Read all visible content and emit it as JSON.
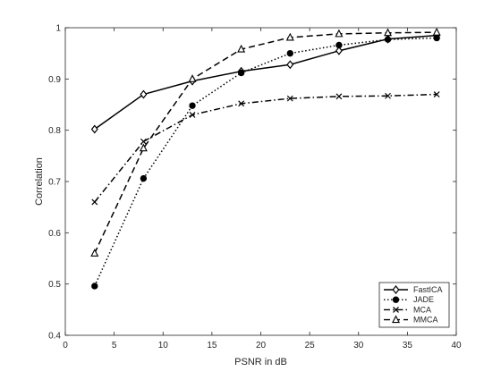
{
  "chart_data": {
    "type": "line",
    "title": "",
    "xlabel": "PSNR in dB",
    "ylabel": "Correlation",
    "xlim": [
      0,
      40
    ],
    "ylim": [
      0.4,
      1
    ],
    "xticks": [
      0,
      5,
      10,
      15,
      20,
      25,
      30,
      35,
      40
    ],
    "yticks": [
      0.4,
      0.5,
      0.6,
      0.7,
      0.8,
      0.9,
      1
    ],
    "xtick_labels": [
      "0",
      "5",
      "10",
      "15",
      "20",
      "25",
      "30",
      "35",
      "40"
    ],
    "ytick_labels": [
      "0.4",
      "0.5",
      "0.6",
      "0.7",
      "0.8",
      "0.9",
      "1"
    ],
    "grid": false,
    "legend_position": "bottom-right",
    "x": [
      3,
      8,
      13,
      18,
      23,
      28,
      33,
      38
    ],
    "series": [
      {
        "name": "FastICA",
        "values": [
          0.802,
          0.87,
          0.896,
          0.915,
          0.928,
          0.955,
          0.978,
          0.985
        ],
        "line_style": "solid",
        "marker": "diamond-open",
        "color": "#000000"
      },
      {
        "name": "JADE",
        "values": [
          0.496,
          0.706,
          0.848,
          0.912,
          0.95,
          0.966,
          0.977,
          0.98
        ],
        "line_style": "dotted",
        "marker": "circle-filled",
        "color": "#000000"
      },
      {
        "name": "MCA",
        "values": [
          0.66,
          0.778,
          0.83,
          0.852,
          0.862,
          0.866,
          0.867,
          0.87
        ],
        "line_style": "dash-dot",
        "marker": "x",
        "color": "#000000"
      },
      {
        "name": "MMCA",
        "values": [
          0.56,
          0.765,
          0.9,
          0.958,
          0.981,
          0.988,
          0.99,
          0.991
        ],
        "line_style": "dashed",
        "marker": "triangle-open",
        "color": "#000000"
      }
    ]
  }
}
